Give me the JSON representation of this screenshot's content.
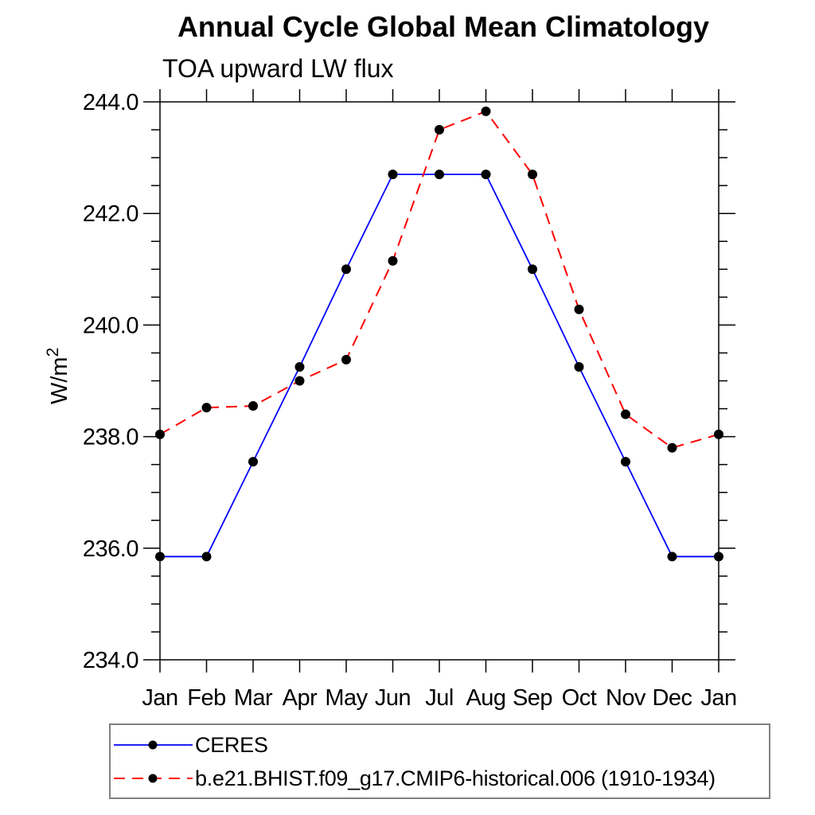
{
  "title": "Annual Cycle Global Mean Climatology",
  "subtitle": "TOA upward LW flux",
  "ylabel": {
    "base": "W/m",
    "sup": "2"
  },
  "colors": {
    "axis": "#000000",
    "marker": "#000000",
    "ceres_line": "#0000ff",
    "model_line": "#ff0000",
    "legend_border": "#808080"
  },
  "chart_data": {
    "type": "line",
    "categories": [
      "Jan",
      "Feb",
      "Mar",
      "Apr",
      "May",
      "Jun",
      "Jul",
      "Aug",
      "Sep",
      "Oct",
      "Nov",
      "Dec",
      "Jan"
    ],
    "series": [
      {
        "name": "CERES",
        "color": "#0000ff",
        "line_style": "solid",
        "line_width": 1.8,
        "marker": "filled-circle",
        "values": [
          235.85,
          235.85,
          237.55,
          239.25,
          241.0,
          242.7,
          242.7,
          242.7,
          241.0,
          239.25,
          237.55,
          235.85,
          235.85
        ]
      },
      {
        "name": "b.e21.BHIST.f09_g17.CMIP6-historical.006 (1910-1934)",
        "color": "#ff0000",
        "line_style": "dashed",
        "line_width": 2.0,
        "marker": "filled-circle",
        "values": [
          238.04,
          238.52,
          238.55,
          239.0,
          239.38,
          241.15,
          243.5,
          243.83,
          242.7,
          240.28,
          238.4,
          237.8,
          238.04
        ]
      }
    ],
    "xlabel": "",
    "ylabel": "W/m2",
    "ylim": [
      234.0,
      244.0
    ],
    "yticks_major": [
      234,
      236,
      238,
      240,
      242,
      244
    ],
    "ytick_labels": [
      "234.0",
      "236.0",
      "238.0",
      "240.0",
      "242.0",
      "244.0"
    ],
    "ytick_minor_step": 0.5,
    "grid": false,
    "legend_position": "bottom-left"
  }
}
